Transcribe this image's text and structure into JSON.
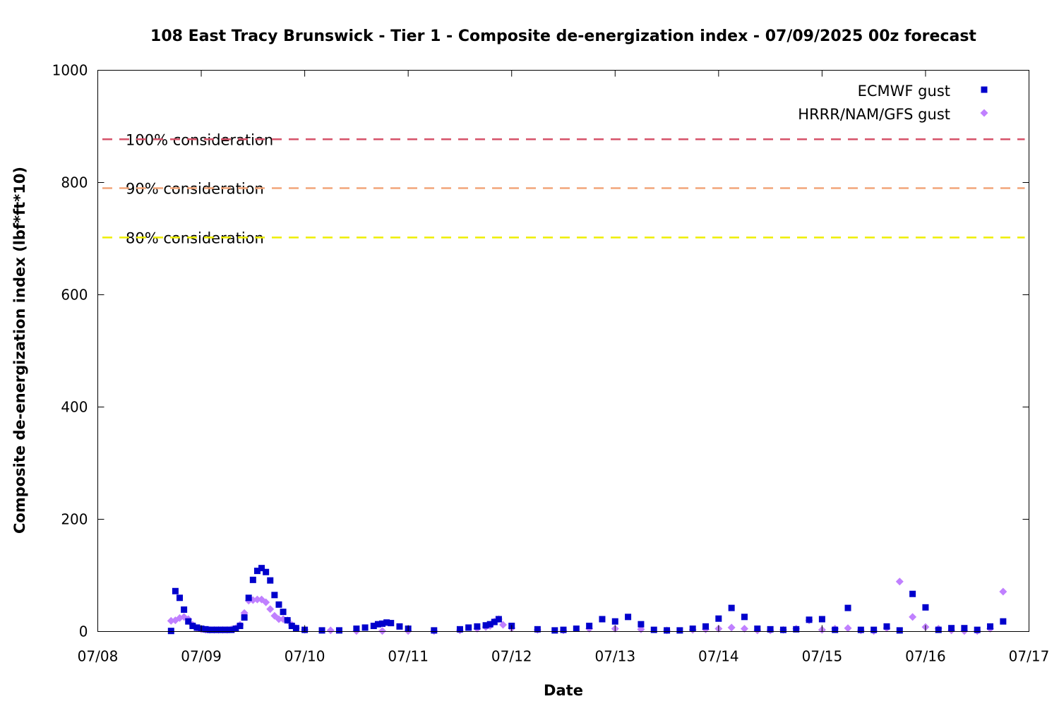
{
  "chart_data": {
    "type": "scatter",
    "title": "108 East Tracy Brunswick - Tier 1 - Composite de-energization index - 07/09/2025 00z forecast",
    "xlabel": "Date",
    "ylabel": "Composite de-energization index (lbf*ft*10)",
    "xlim": [
      "07/08",
      "07/17"
    ],
    "ylim": [
      0,
      1000
    ],
    "x_ticks": [
      "07/08",
      "07/09",
      "07/10",
      "07/11",
      "07/12",
      "07/13",
      "07/14",
      "07/15",
      "07/16",
      "07/17"
    ],
    "y_ticks": [
      "0",
      "200",
      "400",
      "600",
      "800",
      "1000"
    ],
    "legend_position": "top-right",
    "grid": false,
    "reference_lines": [
      {
        "label": "100% consideration",
        "y": 877,
        "color": "#d6536a"
      },
      {
        "label": "90% consideration",
        "y": 790,
        "color": "#f2a57a"
      },
      {
        "label": "80% consideration",
        "y": 702,
        "color": "#eeee00"
      }
    ],
    "series": [
      {
        "name": "ECMWF gust",
        "color": "#0000cc",
        "marker": "square",
        "x": [
          "07/08 17:00",
          "07/08 18:00",
          "07/08 19:00",
          "07/08 20:00",
          "07/08 21:00",
          "07/08 22:00",
          "07/08 23:00",
          "07/09 00:00",
          "07/09 01:00",
          "07/09 02:00",
          "07/09 03:00",
          "07/09 04:00",
          "07/09 05:00",
          "07/09 06:00",
          "07/09 07:00",
          "07/09 08:00",
          "07/09 09:00",
          "07/09 10:00",
          "07/09 11:00",
          "07/09 12:00",
          "07/09 13:00",
          "07/09 14:00",
          "07/09 15:00",
          "07/09 16:00",
          "07/09 17:00",
          "07/09 18:00",
          "07/09 19:00",
          "07/09 20:00",
          "07/09 21:00",
          "07/09 22:00",
          "07/10 00:00",
          "07/10 04:00",
          "07/10 08:00",
          "07/10 12:00",
          "07/10 14:00",
          "07/10 16:00",
          "07/10 17:00",
          "07/10 18:00",
          "07/10 19:00",
          "07/10 20:00",
          "07/10 22:00",
          "07/11 00:00",
          "07/11 06:00",
          "07/11 12:00",
          "07/11 14:00",
          "07/11 16:00",
          "07/11 18:00",
          "07/11 19:00",
          "07/11 20:00",
          "07/11 21:00",
          "07/12 00:00",
          "07/12 06:00",
          "07/12 10:00",
          "07/12 12:00",
          "07/12 15:00",
          "07/12 18:00",
          "07/12 21:00",
          "07/13 00:00",
          "07/13 03:00",
          "07/13 06:00",
          "07/13 09:00",
          "07/13 12:00",
          "07/13 15:00",
          "07/13 18:00",
          "07/13 21:00",
          "07/14 00:00",
          "07/14 03:00",
          "07/14 06:00",
          "07/14 09:00",
          "07/14 12:00",
          "07/14 15:00",
          "07/14 18:00",
          "07/14 21:00",
          "07/15 00:00",
          "07/15 03:00",
          "07/15 06:00",
          "07/15 09:00",
          "07/15 12:00",
          "07/15 15:00",
          "07/15 18:00",
          "07/15 21:00",
          "07/16 00:00",
          "07/16 03:00",
          "07/16 06:00",
          "07/16 09:00",
          "07/16 12:00",
          "07/16 15:00",
          "07/16 18:00"
        ],
        "y": [
          1,
          72,
          60,
          39,
          18,
          10,
          7,
          5,
          4,
          3,
          3,
          3,
          3,
          3,
          3,
          5,
          10,
          25,
          60,
          92,
          108,
          113,
          106,
          91,
          65,
          48,
          35,
          20,
          10,
          6,
          3,
          2,
          2,
          5,
          7,
          10,
          13,
          14,
          16,
          15,
          9,
          5,
          2,
          4,
          7,
          9,
          11,
          13,
          17,
          22,
          10,
          4,
          2,
          3,
          5,
          10,
          22,
          18,
          26,
          13,
          3,
          2,
          2,
          5,
          9,
          23,
          42,
          26,
          5,
          4,
          3,
          4,
          21,
          22,
          3,
          42,
          3,
          3,
          9,
          2,
          67,
          43,
          3,
          6,
          6,
          3,
          9,
          18
        ]
      },
      {
        "name": "HRRR/NAM/GFS gust",
        "color": "#c080ff",
        "marker": "diamond",
        "x": [
          "07/08 17:00",
          "07/08 18:00",
          "07/08 19:00",
          "07/08 20:00",
          "07/08 21:00",
          "07/08 22:00",
          "07/08 23:00",
          "07/09 00:00",
          "07/09 01:00",
          "07/09 02:00",
          "07/09 03:00",
          "07/09 04:00",
          "07/09 05:00",
          "07/09 06:00",
          "07/09 07:00",
          "07/09 08:00",
          "07/09 09:00",
          "07/09 10:00",
          "07/09 11:00",
          "07/09 12:00",
          "07/09 13:00",
          "07/09 14:00",
          "07/09 15:00",
          "07/09 16:00",
          "07/09 17:00",
          "07/09 18:00",
          "07/09 19:00",
          "07/09 20:00",
          "07/09 21:00",
          "07/09 22:00",
          "07/10 00:00",
          "07/10 06:00",
          "07/10 12:00",
          "07/10 18:00",
          "07/11 00:00",
          "07/11 06:00",
          "07/11 12:00",
          "07/11 16:00",
          "07/11 18:00",
          "07/11 19:00",
          "07/11 20:00",
          "07/11 21:00",
          "07/11 22:00",
          "07/12 00:00",
          "07/12 06:00",
          "07/12 12:00",
          "07/12 18:00",
          "07/13 00:00",
          "07/13 06:00",
          "07/13 12:00",
          "07/13 18:00",
          "07/13 21:00",
          "07/14 00:00",
          "07/14 03:00",
          "07/14 06:00",
          "07/14 09:00",
          "07/14 12:00",
          "07/14 15:00",
          "07/14 18:00",
          "07/14 21:00",
          "07/15 00:00",
          "07/15 03:00",
          "07/15 06:00",
          "07/15 09:00",
          "07/15 12:00",
          "07/15 15:00",
          "07/15 18:00",
          "07/15 21:00",
          "07/16 00:00",
          "07/16 03:00",
          "07/16 06:00",
          "07/16 09:00",
          "07/16 12:00",
          "07/16 15:00",
          "07/16 18:00"
        ],
        "y": [
          19,
          20,
          24,
          26,
          22,
          12,
          6,
          4,
          3,
          3,
          3,
          3,
          3,
          3,
          4,
          6,
          12,
          33,
          55,
          56,
          57,
          57,
          52,
          40,
          28,
          22,
          22,
          20,
          12,
          6,
          3,
          2,
          1,
          1,
          1,
          1,
          2,
          5,
          8,
          10,
          18,
          22,
          12,
          6,
          3,
          2,
          5,
          5,
          4,
          2,
          3,
          4,
          5,
          7,
          5,
          2,
          2,
          3,
          5,
          20,
          3,
          5,
          6,
          2,
          1,
          6,
          89,
          26,
          8,
          5,
          2,
          1,
          1,
          5,
          71
        ]
      }
    ]
  }
}
